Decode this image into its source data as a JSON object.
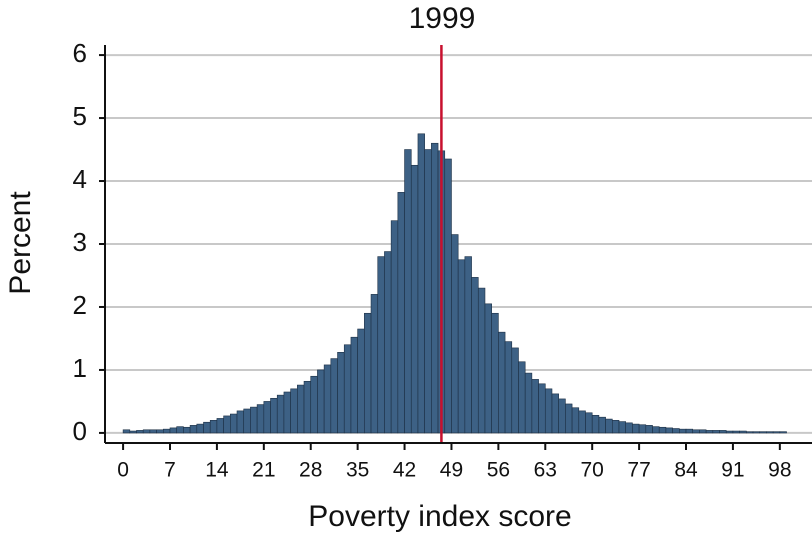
{
  "chart_data": {
    "type": "histogram",
    "title": "1999",
    "x_label": "Poverty index score",
    "y_label": "Percent",
    "bins": [
      0,
      1,
      2,
      3,
      4,
      5,
      6,
      7,
      8,
      9,
      10,
      11,
      12,
      13,
      14,
      15,
      16,
      17,
      18,
      19,
      20,
      21,
      22,
      23,
      24,
      25,
      26,
      27,
      28,
      29,
      30,
      31,
      32,
      33,
      34,
      35,
      36,
      37,
      38,
      39,
      40,
      41,
      42,
      43,
      44,
      45,
      46,
      47,
      48,
      49,
      50,
      51,
      52,
      53,
      54,
      55,
      56,
      57,
      58,
      59,
      60,
      61,
      62,
      63,
      64,
      65,
      66,
      67,
      68,
      69,
      70,
      71,
      72,
      73,
      74,
      75,
      76,
      77,
      78,
      79,
      80,
      81,
      82,
      83,
      84,
      85,
      86,
      87,
      88,
      89,
      90,
      91,
      92,
      93,
      94,
      95,
      96,
      97,
      98,
      99
    ],
    "values": [
      0.05,
      0.03,
      0.04,
      0.05,
      0.05,
      0.05,
      0.06,
      0.08,
      0.1,
      0.09,
      0.12,
      0.14,
      0.17,
      0.2,
      0.23,
      0.27,
      0.3,
      0.35,
      0.38,
      0.41,
      0.45,
      0.5,
      0.55,
      0.6,
      0.65,
      0.7,
      0.76,
      0.82,
      0.9,
      1.0,
      1.08,
      1.18,
      1.28,
      1.4,
      1.52,
      1.65,
      1.9,
      2.2,
      2.8,
      2.88,
      3.37,
      3.82,
      4.5,
      4.25,
      4.75,
      4.5,
      4.6,
      4.48,
      4.35,
      3.15,
      2.75,
      2.8,
      2.47,
      2.3,
      2.05,
      1.9,
      1.6,
      1.45,
      1.35,
      1.13,
      0.95,
      0.85,
      0.78,
      0.7,
      0.62,
      0.54,
      0.46,
      0.4,
      0.35,
      0.32,
      0.28,
      0.25,
      0.22,
      0.2,
      0.18,
      0.16,
      0.14,
      0.13,
      0.12,
      0.1,
      0.09,
      0.08,
      0.07,
      0.06,
      0.06,
      0.05,
      0.05,
      0.04,
      0.04,
      0.04,
      0.03,
      0.03,
      0.03,
      0.02,
      0.02,
      0.02,
      0.02,
      0.02,
      0.02
    ],
    "color": "#3d6185",
    "edge_color": "#1c2f44",
    "vline": 47.5,
    "vline_color": "#c8102e",
    "xlim": [
      -2.7,
      102.8
    ],
    "ylim": [
      -0.16,
      6.16
    ],
    "xticks": [
      0,
      7,
      14,
      21,
      28,
      35,
      42,
      49,
      56,
      63,
      70,
      77,
      84,
      91,
      98
    ],
    "yticks": [
      0,
      1,
      2,
      3,
      4,
      5,
      6
    ],
    "grid": true
  }
}
